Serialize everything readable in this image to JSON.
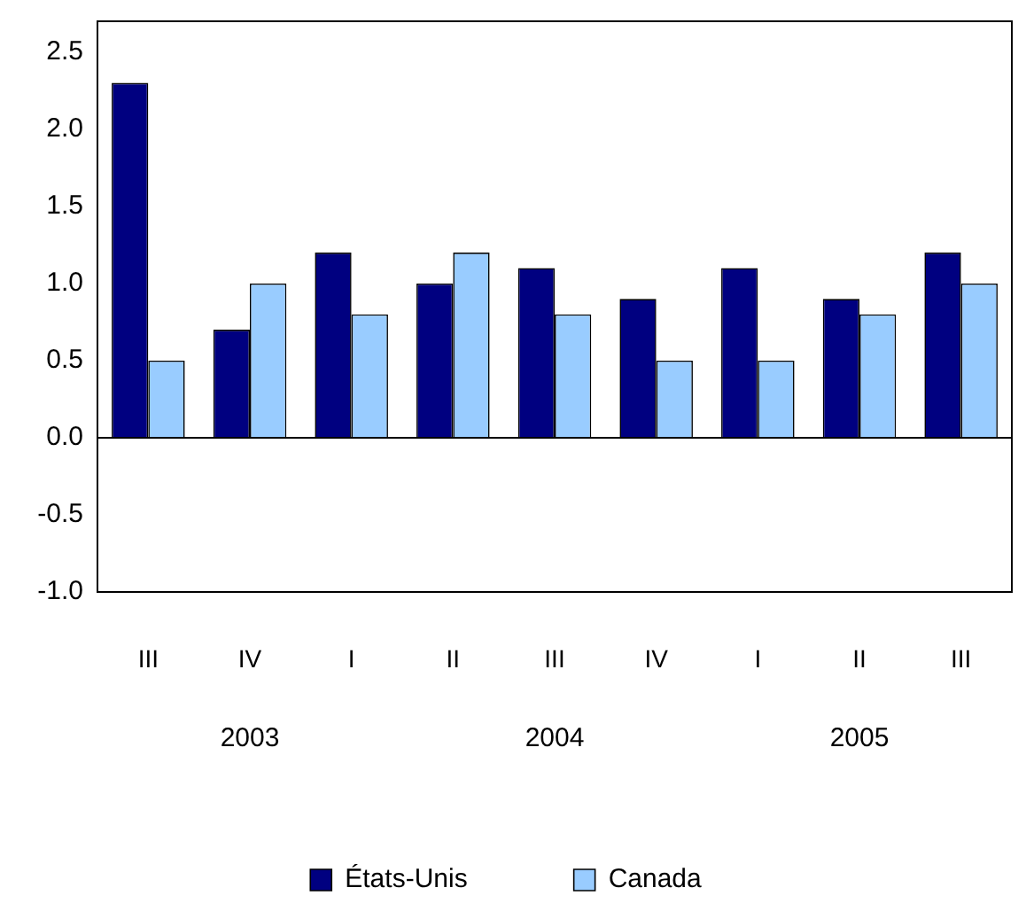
{
  "chart_data": {
    "type": "bar",
    "categories": [
      "III",
      "IV",
      "I",
      "II",
      "III",
      "IV",
      "I",
      "II",
      "III"
    ],
    "series": [
      {
        "name": "États-Unis",
        "color": "#000080",
        "values": [
          2.3,
          0.7,
          1.2,
          1.0,
          1.1,
          0.9,
          1.1,
          0.9,
          1.2
        ]
      },
      {
        "name": "Canada",
        "color": "#99ccff",
        "values": [
          0.5,
          1.0,
          0.8,
          1.2,
          0.8,
          0.5,
          0.5,
          0.8,
          1.0
        ]
      }
    ],
    "ylim": [
      -1.0,
      2.7
    ],
    "yticks": [
      {
        "value": -1,
        "label": "-1.0"
      },
      {
        "value": -0.5,
        "label": "-0.5"
      },
      {
        "value": 0,
        "label": "0.0"
      },
      {
        "value": 0.5,
        "label": "0.5"
      },
      {
        "value": 1,
        "label": "1.0"
      },
      {
        "value": 1.5,
        "label": "1.5"
      },
      {
        "value": 2,
        "label": "2.0"
      },
      {
        "value": 2.5,
        "label": "2.5"
      }
    ],
    "annotations": [
      "2003",
      "2004",
      "2005"
    ],
    "ref_lines": [
      {
        "axis": "y",
        "value": 0
      }
    ],
    "grid": false,
    "legend": "bottom"
  }
}
